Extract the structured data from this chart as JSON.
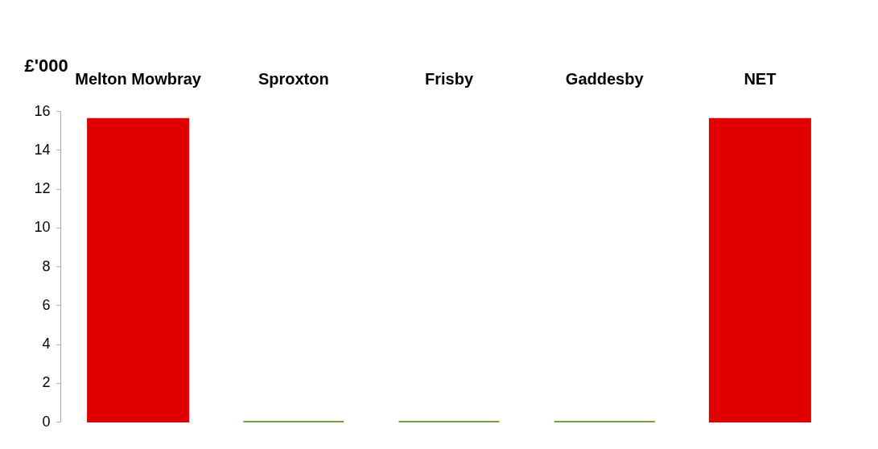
{
  "chart_data": {
    "type": "bar",
    "ylabel": "£'000",
    "categories": [
      "Melton Mowbray",
      "Sproxton",
      "Frisby",
      "Gaddesby",
      "NET"
    ],
    "values": [
      15.6,
      0,
      0,
      0,
      15.6
    ],
    "colors": [
      "#e00000",
      "#77a03c",
      "#77a03c",
      "#77a03c",
      "#e00000"
    ],
    "ylim": [
      0,
      16
    ],
    "yticks": [
      0,
      2,
      4,
      6,
      8,
      10,
      12,
      14,
      16
    ],
    "grid": false
  }
}
